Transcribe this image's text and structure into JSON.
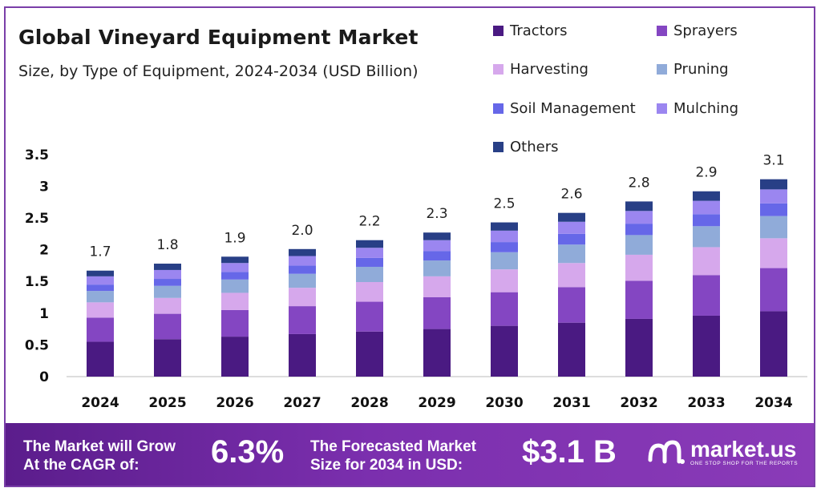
{
  "header": {
    "title": "Global Vineyard Equipment Market",
    "subtitle": "Size, by Type of Equipment, 2024-2034 (USD Billion)"
  },
  "chart_data": {
    "type": "bar",
    "stacked": true,
    "categories": [
      "2024",
      "2025",
      "2026",
      "2027",
      "2028",
      "2029",
      "2030",
      "2031",
      "2032",
      "2033",
      "2034"
    ],
    "totals": [
      "1.7",
      "1.8",
      "1.9",
      "2.0",
      "2.2",
      "2.3",
      "2.5",
      "2.6",
      "2.8",
      "2.9",
      "3.1"
    ],
    "series": [
      {
        "name": "Tractors",
        "color": "#4a1a82",
        "values": [
          0.55,
          0.59,
          0.63,
          0.67,
          0.71,
          0.75,
          0.8,
          0.85,
          0.91,
          0.96,
          1.03
        ]
      },
      {
        "name": "Sprayers",
        "color": "#8446c2",
        "values": [
          0.38,
          0.4,
          0.42,
          0.44,
          0.47,
          0.5,
          0.53,
          0.56,
          0.6,
          0.64,
          0.68
        ]
      },
      {
        "name": "Harvesting",
        "color": "#d6a8ec",
        "values": [
          0.24,
          0.25,
          0.27,
          0.29,
          0.31,
          0.33,
          0.36,
          0.38,
          0.41,
          0.44,
          0.47
        ]
      },
      {
        "name": "Pruning",
        "color": "#90abd9",
        "values": [
          0.18,
          0.19,
          0.21,
          0.22,
          0.24,
          0.25,
          0.27,
          0.29,
          0.31,
          0.33,
          0.35
        ]
      },
      {
        "name": "Soil Management",
        "color": "#6667e8",
        "values": [
          0.1,
          0.11,
          0.12,
          0.13,
          0.14,
          0.15,
          0.16,
          0.17,
          0.18,
          0.19,
          0.2
        ]
      },
      {
        "name": "Mulching",
        "color": "#9b86f0",
        "values": [
          0.13,
          0.14,
          0.14,
          0.15,
          0.16,
          0.17,
          0.18,
          0.19,
          0.2,
          0.21,
          0.22
        ]
      },
      {
        "name": "Others",
        "color": "#283f86",
        "values": [
          0.09,
          0.1,
          0.1,
          0.11,
          0.12,
          0.12,
          0.13,
          0.14,
          0.15,
          0.15,
          0.16
        ]
      }
    ],
    "yticks": [
      "0",
      "0.5",
      "1",
      "1.5",
      "2",
      "2.5",
      "3",
      "3.5"
    ],
    "ylim": [
      0,
      3.5
    ],
    "legend_position": "top-right",
    "grid": false
  },
  "footer": {
    "cagr_label": "The Market will Grow At the CAGR of:",
    "cagr_label_line1": "The Market will Grow",
    "cagr_label_line2": "At the CAGR of:",
    "cagr_value": "6.3%",
    "forecast_label_line1": "The Forecasted Market",
    "forecast_label_line2": "Size for 2034 in USD:",
    "forecast_value": "$3.1 B",
    "brand_name": "market.us",
    "brand_tagline": "ONE STOP SHOP FOR THE REPORTS",
    "background_color": "#7b2fae"
  }
}
